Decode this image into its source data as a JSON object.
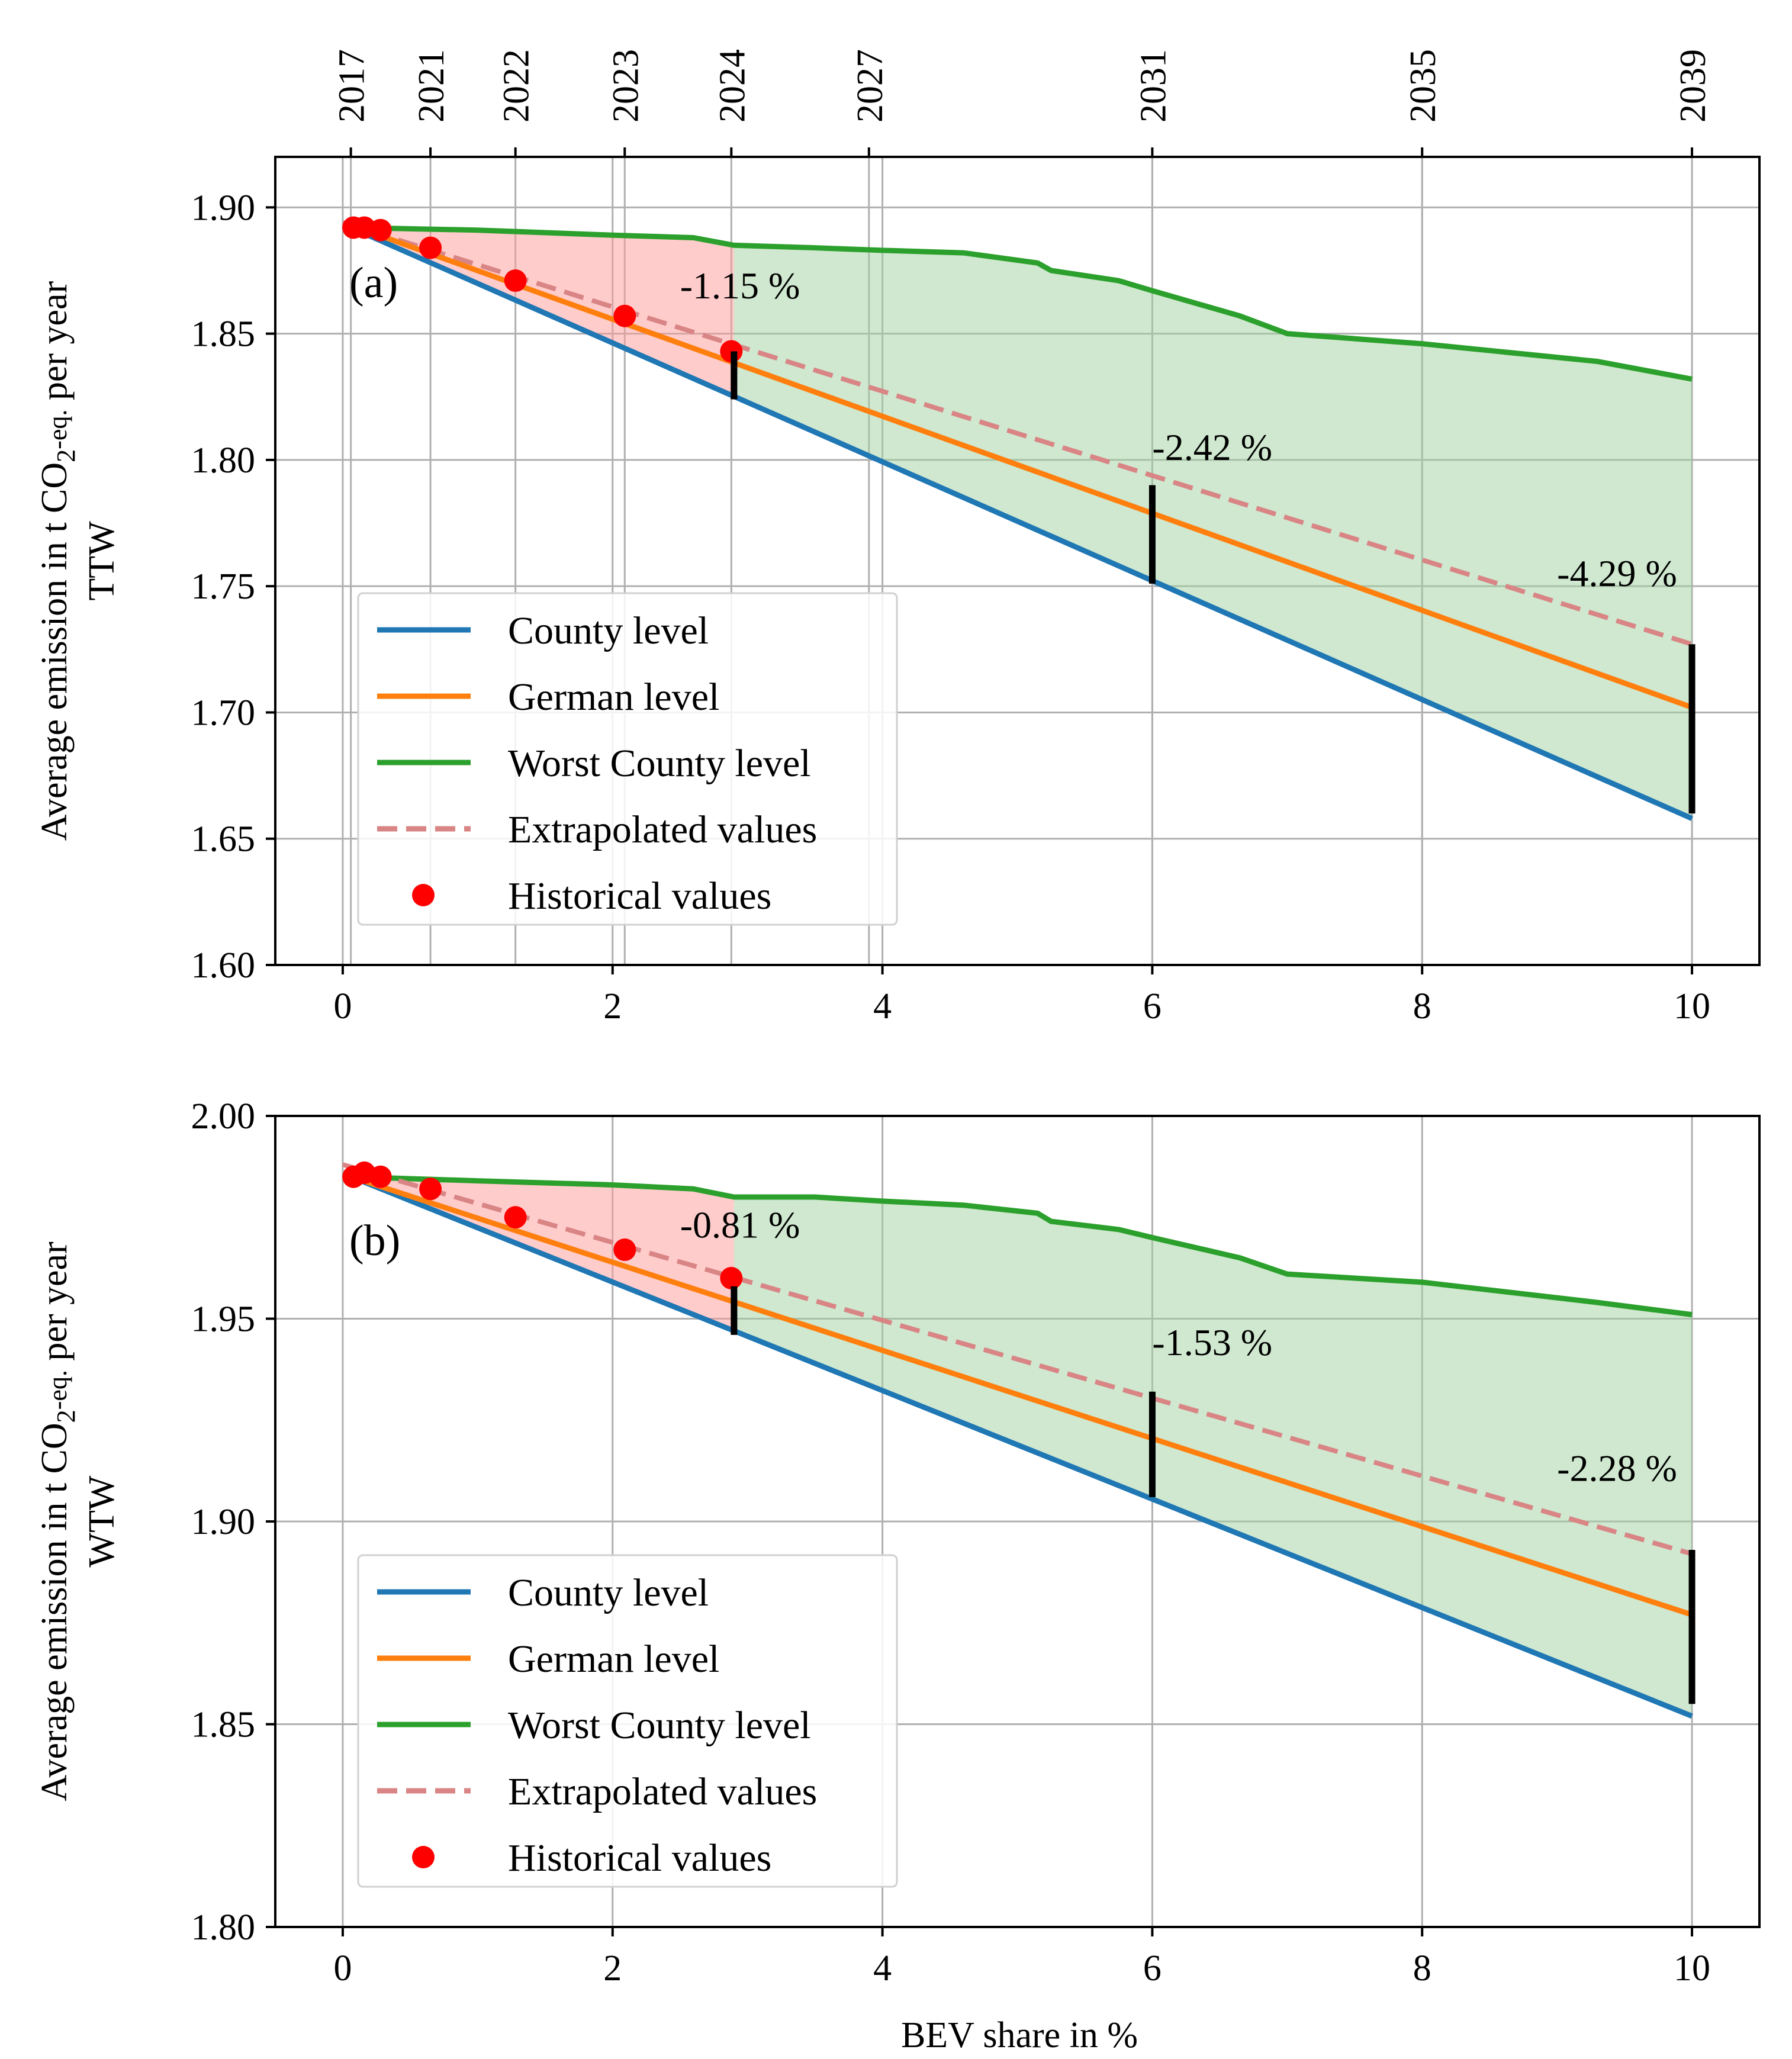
{
  "chart_data": [
    {
      "type": "line",
      "panel_label": "(a)",
      "ylabel_line1": "Average emission in t CO",
      "ylabel_sub": "2",
      "ylabel_suffix": "-eq.",
      "ylabel_tail": " per year",
      "ylabel_line2": "TTW",
      "xlabel": "",
      "xlim": [
        -0.5,
        10.5
      ],
      "ylim": [
        1.6,
        1.92
      ],
      "xticks": [
        0,
        2,
        4,
        6,
        8,
        10
      ],
      "yticks": [
        1.6,
        1.65,
        1.7,
        1.75,
        1.8,
        1.85,
        1.9
      ],
      "ytick_labels": [
        "1.60",
        "1.65",
        "1.70",
        "1.75",
        "1.80",
        "1.85",
        "1.90"
      ],
      "top_axis": {
        "x": [
          0.06,
          0.65,
          1.28,
          2.09,
          2.88,
          3.9,
          6.0,
          8.0,
          10.0
        ],
        "labels": [
          "2017",
          "2021",
          "2022",
          "2023",
          "2024",
          "2027",
          "2031",
          "2035",
          "2039"
        ]
      },
      "grid": true,
      "legend_position": "lower-left",
      "series": [
        {
          "name": "County level",
          "color": "#1f77b4",
          "style": "solid",
          "x": [
            0.06,
            10
          ],
          "y": [
            1.892,
            1.658
          ]
        },
        {
          "name": "German level",
          "color": "#ff7f0e",
          "style": "solid",
          "x": [
            0.06,
            10
          ],
          "y": [
            1.893,
            1.702
          ]
        },
        {
          "name": "Worst County level",
          "color": "#2ca02c",
          "style": "solid",
          "x": [
            0.06,
            1.0,
            2.0,
            2.6,
            2.9,
            3.5,
            4.0,
            4.6,
            5.15,
            5.25,
            5.75,
            6.0,
            6.65,
            7.0,
            8.0,
            9.3,
            10.0
          ],
          "y": [
            1.892,
            1.891,
            1.889,
            1.888,
            1.885,
            1.884,
            1.883,
            1.882,
            1.878,
            1.875,
            1.871,
            1.867,
            1.857,
            1.85,
            1.846,
            1.839,
            1.832
          ]
        },
        {
          "name": "Extrapolated values",
          "color": "#d98585",
          "style": "dashed",
          "x": [
            0.0,
            10
          ],
          "y": [
            1.894,
            1.727
          ]
        },
        {
          "name": "Historical values",
          "color": "#ff0000",
          "style": "scatter",
          "x": [
            0.08,
            0.16,
            0.28,
            0.65,
            1.28,
            2.09,
            2.88
          ],
          "y": [
            1.892,
            1.892,
            1.891,
            1.884,
            1.871,
            1.857,
            1.843
          ]
        }
      ],
      "shading": [
        {
          "color": "#ff9a9a",
          "x_from": 0.06,
          "x_to": 2.9
        },
        {
          "color": "#9fd19f",
          "x_from": 2.9,
          "x_to": 10.0
        }
      ],
      "markers": [
        {
          "x": 2.9,
          "y_from": 1.824,
          "y_to": 1.843,
          "label": "-1.15 %",
          "label_x": 2.5,
          "label_y": 1.864
        },
        {
          "x": 6.0,
          "y_from": 1.751,
          "y_to": 1.79,
          "label": "-2.42 %",
          "label_x": 6.0,
          "label_y": 1.8
        },
        {
          "x": 10.0,
          "y_from": 1.66,
          "y_to": 1.727,
          "label": "-4.29 %",
          "label_x": 9.0,
          "label_y": 1.75
        }
      ]
    },
    {
      "type": "line",
      "panel_label": "(b)",
      "ylabel_line1": "Average emission in t CO",
      "ylabel_sub": "2",
      "ylabel_suffix": "-eq.",
      "ylabel_tail": " per year",
      "ylabel_line2": "WTW",
      "xlabel": "BEV share in %",
      "xlim": [
        -0.5,
        10.5
      ],
      "ylim": [
        1.8,
        2.0
      ],
      "xticks": [
        0,
        2,
        4,
        6,
        8,
        10
      ],
      "yticks": [
        1.8,
        1.85,
        1.9,
        1.95,
        2.0
      ],
      "ytick_labels": [
        "1.80",
        "1.85",
        "1.90",
        "1.95",
        "2.00"
      ],
      "grid": true,
      "legend_position": "lower-left",
      "series": [
        {
          "name": "County level",
          "color": "#1f77b4",
          "style": "solid",
          "x": [
            0.06,
            10
          ],
          "y": [
            1.985,
            1.852
          ]
        },
        {
          "name": "German level",
          "color": "#ff7f0e",
          "style": "solid",
          "x": [
            0.06,
            10
          ],
          "y": [
            1.985,
            1.877
          ]
        },
        {
          "name": "Worst County level",
          "color": "#2ca02c",
          "style": "solid",
          "x": [
            0.06,
            1.0,
            2.0,
            2.6,
            2.9,
            3.5,
            4.0,
            4.6,
            5.15,
            5.25,
            5.75,
            6.0,
            6.65,
            7.0,
            8.0,
            9.3,
            10.0
          ],
          "y": [
            1.985,
            1.984,
            1.983,
            1.982,
            1.98,
            1.98,
            1.979,
            1.978,
            1.976,
            1.974,
            1.972,
            1.97,
            1.965,
            1.961,
            1.959,
            1.954,
            1.951
          ]
        },
        {
          "name": "Extrapolated values",
          "color": "#d98585",
          "style": "dashed",
          "x": [
            0.0,
            10
          ],
          "y": [
            1.988,
            1.892
          ]
        },
        {
          "name": "Historical values",
          "color": "#ff0000",
          "style": "scatter",
          "x": [
            0.08,
            0.16,
            0.28,
            0.65,
            1.28,
            2.09,
            2.88
          ],
          "y": [
            1.985,
            1.986,
            1.985,
            1.982,
            1.975,
            1.967,
            1.96
          ]
        }
      ],
      "shading": [
        {
          "color": "#ff9a9a",
          "x_from": 0.06,
          "x_to": 2.9
        },
        {
          "color": "#9fd19f",
          "x_from": 2.9,
          "x_to": 10.0
        }
      ],
      "markers": [
        {
          "x": 2.9,
          "y_from": 1.946,
          "y_to": 1.958,
          "label": "-0.81 %",
          "label_x": 2.5,
          "label_y": 1.97
        },
        {
          "x": 6.0,
          "y_from": 1.906,
          "y_to": 1.932,
          "label": "-1.53 %",
          "label_x": 6.0,
          "label_y": 1.941
        },
        {
          "x": 10.0,
          "y_from": 1.855,
          "y_to": 1.893,
          "label": "-2.28 %",
          "label_x": 9.0,
          "label_y": 1.91
        }
      ]
    }
  ]
}
